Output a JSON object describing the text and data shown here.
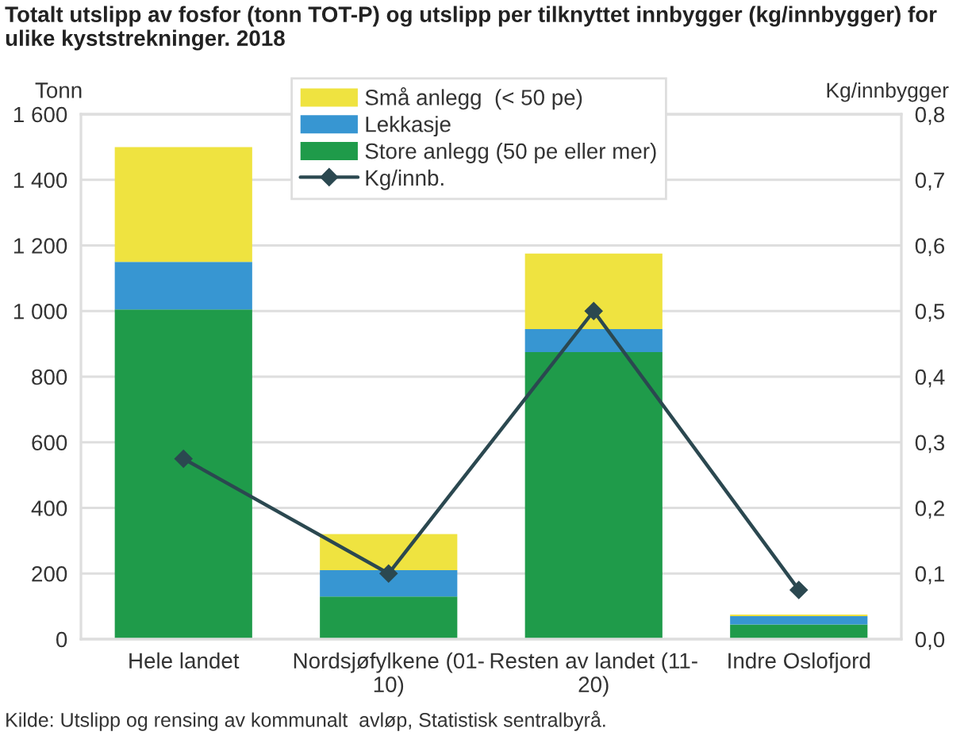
{
  "chart_data": {
    "type": "bar",
    "title": "Totalt utslipp av fosfor (tonn TOT-P) og utslipp per tilknyttet innbygger (kg/innbygger) for ulike kyststrekninger. 2018",
    "ylabel": "Tonn",
    "y2label": "Kg/innbygger",
    "annotations": [
      "Kilde: Utslipp og rensing av kommunalt  avløp, Statistisk sentralbyrå."
    ],
    "categories": [
      "Hele landet",
      "Nordsjøfylkene (01-\n10)",
      "Resten av landet (11-\n20)",
      "Indre Oslofjord"
    ],
    "stacked": true,
    "series": [
      {
        "name": "Store anlegg (50 pe eller mer)",
        "color": "#1f9b4a",
        "values": [
          1005,
          130,
          875,
          45
        ]
      },
      {
        "name": "Lekkasje",
        "color": "#3796d2",
        "values": [
          145,
          80,
          70,
          25
        ]
      },
      {
        "name": "Små anlegg  (< 50 pe)",
        "color": "#efe340",
        "values": [
          350,
          110,
          230,
          5
        ]
      },
      {
        "name": "Kg/innb.",
        "type": "line",
        "axis": "y2",
        "color": "#2b4850",
        "marker": "diamond",
        "line_style": "solid",
        "values": [
          0.275,
          0.1,
          0.5,
          0.075
        ]
      }
    ],
    "ylim": [
      0,
      1600
    ],
    "yticks": [
      0,
      200,
      400,
      600,
      800,
      {
        "value": 1000,
        "label": "1 000"
      },
      {
        "value": 1200,
        "label": "1 200"
      },
      {
        "value": 1400,
        "label": "1 400"
      },
      {
        "value": 1600,
        "label": "1 600"
      }
    ],
    "y2lim": [
      0,
      0.8
    ],
    "y2ticks": [
      {
        "value": 0,
        "label": "0,0"
      },
      {
        "value": 0.1,
        "label": "0,1"
      },
      {
        "value": 0.2,
        "label": "0,2"
      },
      {
        "value": 0.3,
        "label": "0,3"
      },
      {
        "value": 0.4,
        "label": "0,4"
      },
      {
        "value": 0.5,
        "label": "0,5"
      },
      {
        "value": 0.6,
        "label": "0,6"
      },
      {
        "value": 0.7,
        "label": "0,7"
      },
      {
        "value": 0.8,
        "label": "0,8"
      }
    ],
    "grid": "y",
    "legend": "top"
  }
}
